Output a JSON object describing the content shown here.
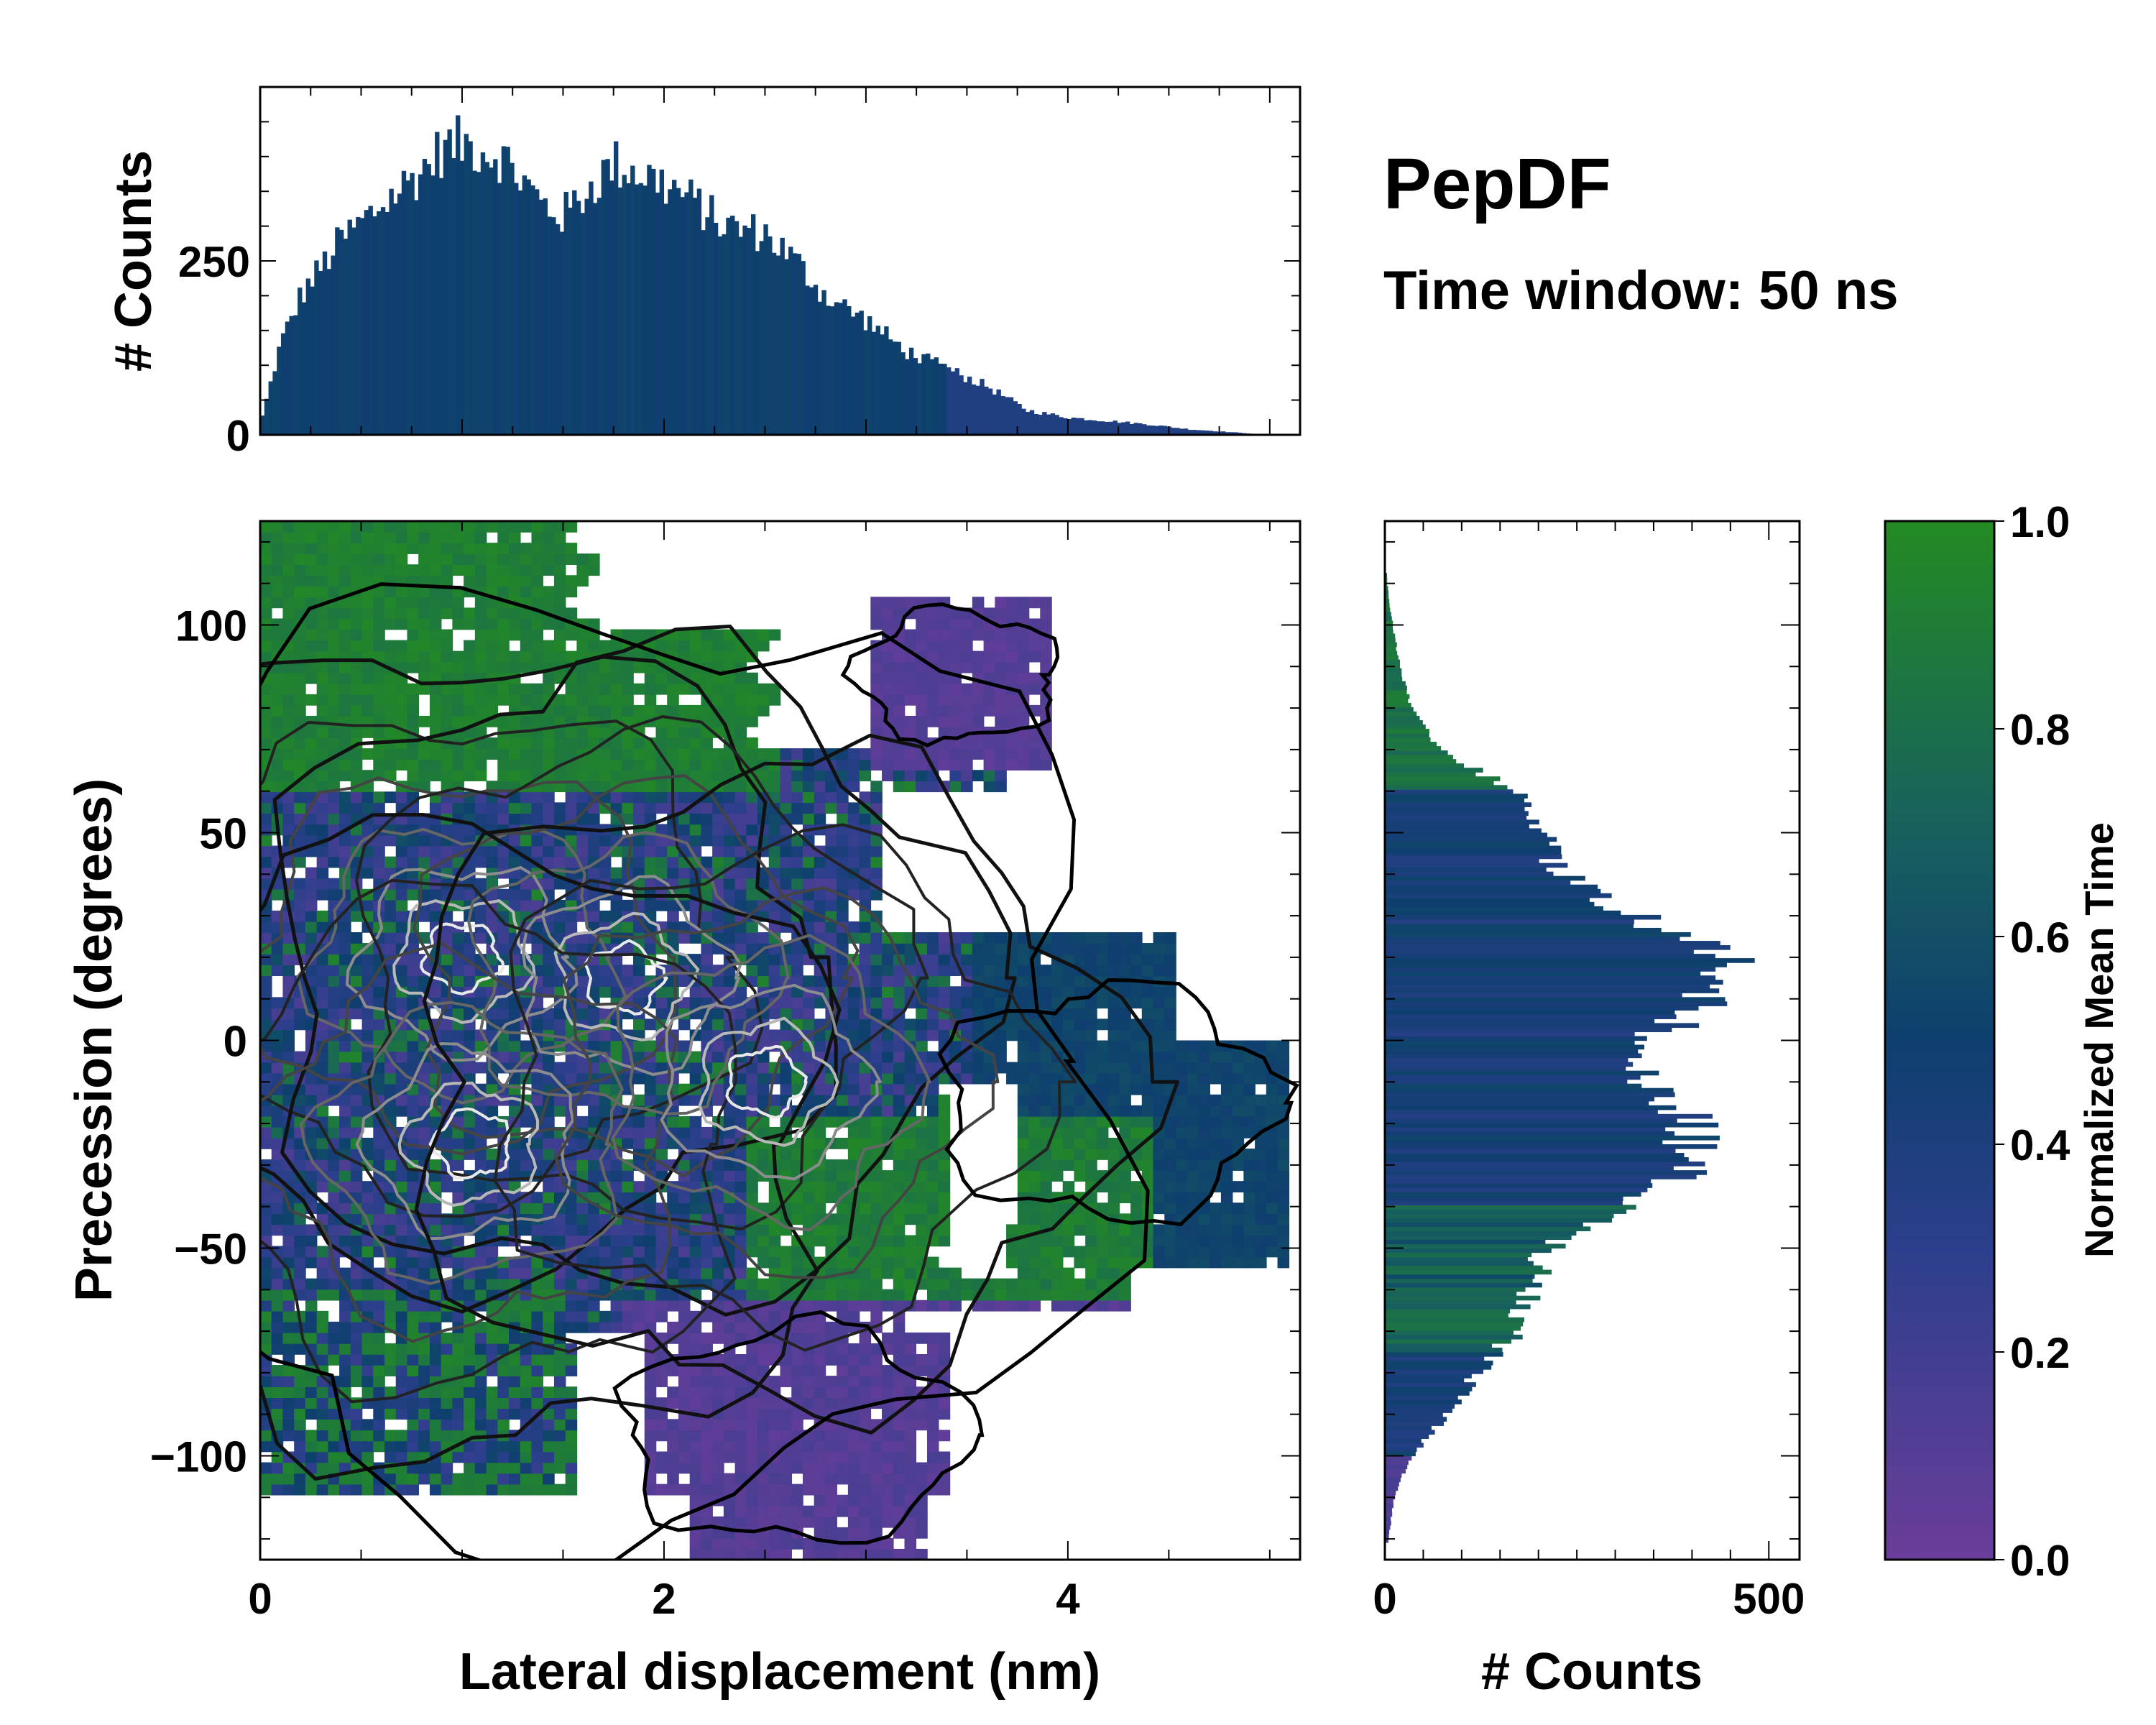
{
  "title": "PepDF",
  "subtitle": "Time window: 50 ns",
  "colors": {
    "purple": "#6a3d9a",
    "blue": "#2c3f8c",
    "navy": "#0e3f6e",
    "teal": "#17605e",
    "green": "#238b23",
    "contour_dark": "#111111",
    "contour_light": "#e8e8e8"
  },
  "chart_data": [
    {
      "name": "top-histogram",
      "type": "bar",
      "xlabel": "",
      "ylabel": "# Counts",
      "xlim": [
        0,
        5.15
      ],
      "ylim": [
        0,
        500
      ],
      "yticks": [
        0,
        250
      ],
      "ytick_labels": [
        "0",
        "250"
      ],
      "x_profile": [
        0,
        0.1,
        0.2,
        0.4,
        0.6,
        0.8,
        0.9,
        1.0,
        1.1,
        1.2,
        1.4,
        1.5,
        1.65,
        1.75,
        1.9,
        2.1,
        2.3,
        2.5,
        2.65,
        2.8,
        3.0,
        3.2,
        3.4,
        3.6,
        3.8,
        4.0,
        4.2,
        4.4,
        4.6,
        4.8,
        5.0
      ],
      "counts_profile": [
        15,
        130,
        200,
        280,
        330,
        380,
        410,
        420,
        410,
        400,
        330,
        315,
        360,
        390,
        375,
        345,
        300,
        290,
        250,
        200,
        165,
        120,
        95,
        70,
        35,
        25,
        20,
        15,
        8,
        4,
        0
      ]
    },
    {
      "name": "main-heatmap",
      "type": "heatmap",
      "xlabel": "Lateral displacement (nm)",
      "ylabel": "Precession (degrees)",
      "xlim": [
        0,
        5.15
      ],
      "ylim": [
        -125,
        125
      ],
      "xticks": [
        0,
        2,
        4
      ],
      "xtick_labels": [
        "0",
        "2",
        "4"
      ],
      "yticks": [
        100,
        50,
        0,
        -50,
        -100
      ],
      "ytick_labels": [
        "100",
        "50",
        "0",
        "−50",
        "−100"
      ],
      "color_value": "Normalized Mean Time",
      "regions": [
        {
          "name": "upper-left-green",
          "x_range": [
            0,
            2.4
          ],
          "y_range": [
            60,
            115
          ],
          "value": 0.9
        },
        {
          "name": "upper-right-purple",
          "x_range": [
            3.1,
            3.9
          ],
          "y_range": [
            75,
            105
          ],
          "value": 0.1
        },
        {
          "name": "core-left-purple",
          "x_range": [
            0,
            3.0
          ],
          "y_range": [
            -60,
            60
          ],
          "value": 0.3
        },
        {
          "name": "right-navy-lobe",
          "x_range": [
            3.3,
            5.1
          ],
          "y_range": [
            -55,
            25
          ],
          "value": 0.55
        },
        {
          "name": "lower-right-green",
          "x_range": [
            2.4,
            4.3
          ],
          "y_range": [
            -65,
            -20
          ],
          "value": 0.9
        },
        {
          "name": "bottom-purple",
          "x_range": [
            1.9,
            3.4
          ],
          "y_range": [
            -125,
            -65
          ],
          "value": 0.1
        },
        {
          "name": "lower-left-mixed",
          "x_range": [
            0,
            1.6
          ],
          "y_range": [
            -105,
            -60
          ],
          "value": 0.5
        }
      ],
      "density_peaks": [
        {
          "x": 1.0,
          "y": 20
        },
        {
          "x": 1.8,
          "y": 15
        },
        {
          "x": 1.05,
          "y": -25
        },
        {
          "x": 2.5,
          "y": -10
        }
      ]
    },
    {
      "name": "right-histogram",
      "type": "bar",
      "orientation": "horizontal",
      "xlabel": "# Counts",
      "ylabel": "",
      "xlim": [
        0,
        540
      ],
      "ylim": [
        -125,
        125
      ],
      "xticks": [
        0,
        500
      ],
      "xtick_labels": [
        "0",
        "500"
      ],
      "y_profile": [
        -120,
        -110,
        -100,
        -90,
        -80,
        -70,
        -60,
        -50,
        -40,
        -30,
        -20,
        -10,
        0,
        10,
        20,
        30,
        40,
        50,
        60,
        70,
        80,
        90,
        100,
        110
      ],
      "counts_profile": [
        5,
        12,
        35,
        80,
        120,
        170,
        190,
        210,
        300,
        400,
        400,
        340,
        350,
        420,
        440,
        330,
        230,
        200,
        170,
        70,
        35,
        20,
        10,
        3
      ]
    },
    {
      "name": "colorbar",
      "type": "colorbar",
      "label": "Normalized Mean Time",
      "range": [
        0,
        1
      ],
      "ticks": [
        0.0,
        0.2,
        0.4,
        0.6,
        0.8,
        1.0
      ],
      "tick_labels": [
        "0.0",
        "0.2",
        "0.4",
        "0.6",
        "0.8",
        "1.0"
      ]
    }
  ]
}
